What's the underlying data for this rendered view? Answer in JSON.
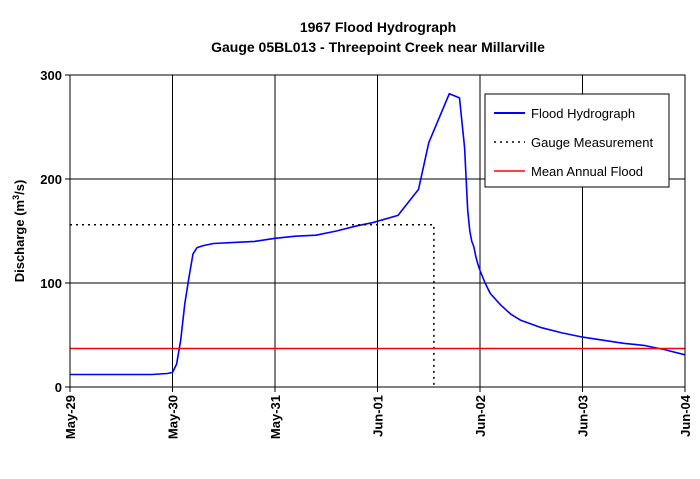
{
  "chart_data": {
    "type": "line",
    "title": "1967 Flood Hydrograph",
    "subtitle": "Gauge 05BL013 - Threepoint Creek near Millarville",
    "ylabel_main": "Discharge (m",
    "ylabel_sup": "3",
    "ylabel_tail": "/s)",
    "xlabel": "",
    "ylim": [
      0,
      300
    ],
    "yticks": [
      "0",
      "100",
      "200",
      "300"
    ],
    "ytick_values": [
      0,
      100,
      200,
      300
    ],
    "xlim_days": [
      0,
      6
    ],
    "xticks": [
      "May-29",
      "May-30",
      "May-31",
      "Jun-01",
      "Jun-02",
      "Jun-03",
      "Jun-04"
    ],
    "grid": true,
    "legend_position": "top-right",
    "colors": {
      "hydrograph": "#0000ff",
      "measurement": "#000000",
      "mean_flood": "#ff0000",
      "grid": "#000000"
    },
    "series": [
      {
        "name": "Flood Hydrograph",
        "style": "solid",
        "x_days": [
          0,
          0.5,
          0.8,
          0.95,
          1.0,
          1.04,
          1.08,
          1.12,
          1.16,
          1.2,
          1.24,
          1.3,
          1.4,
          1.6,
          1.8,
          2.0,
          2.2,
          2.4,
          2.6,
          2.8,
          2.95,
          3.2,
          3.4,
          3.5,
          3.7,
          3.8,
          3.85,
          3.88,
          3.9,
          3.92,
          3.94,
          3.96,
          3.98,
          4.0,
          4.05,
          4.1,
          4.2,
          4.3,
          4.4,
          4.6,
          4.8,
          5.0,
          5.2,
          5.4,
          5.6,
          5.8,
          6.0
        ],
        "y": [
          12,
          12,
          12,
          13,
          14,
          22,
          45,
          80,
          105,
          128,
          134,
          136,
          138,
          139,
          140,
          143,
          145,
          146,
          150,
          155,
          158,
          165,
          190,
          235,
          282,
          278,
          230,
          170,
          150,
          140,
          135,
          125,
          118,
          112,
          100,
          90,
          79,
          70,
          64,
          57,
          52,
          48,
          45,
          42,
          40,
          36,
          31
        ]
      },
      {
        "name": "Gauge Measurement",
        "style": "dotted",
        "x_days": [
          0,
          3.55,
          3.55
        ],
        "y": [
          156,
          156,
          0
        ]
      },
      {
        "name": "Mean Annual Flood",
        "style": "solid",
        "x_days": [
          0,
          6
        ],
        "y": [
          37,
          37
        ]
      }
    ]
  }
}
